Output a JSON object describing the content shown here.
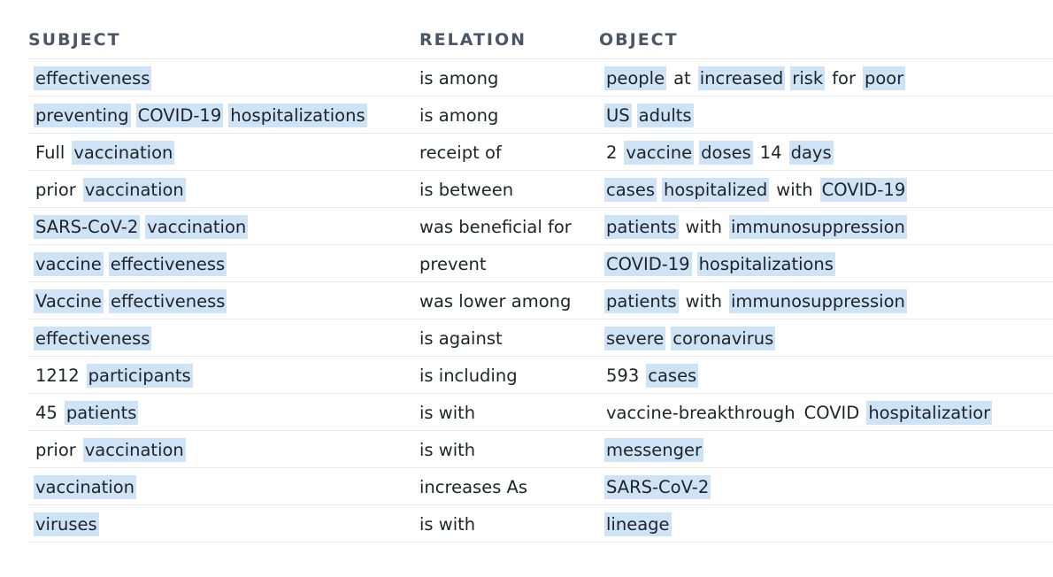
{
  "headers": {
    "subject": "SUBJECT",
    "relation": "RELATION",
    "object": "OBJECT"
  },
  "highlight_color": "#cfe3f7",
  "rows": [
    {
      "subject": [
        {
          "t": "effectiveness",
          "hl": true
        }
      ],
      "relation": "is among",
      "object": [
        {
          "t": "people",
          "hl": true
        },
        {
          "t": "at",
          "hl": false
        },
        {
          "t": "increased",
          "hl": true
        },
        {
          "t": "risk",
          "hl": true
        },
        {
          "t": "for",
          "hl": false
        },
        {
          "t": "poor",
          "hl": true
        }
      ]
    },
    {
      "subject": [
        {
          "t": "preventing",
          "hl": true
        },
        {
          "t": "COVID-19",
          "hl": true
        },
        {
          "t": "hospitalizations",
          "hl": true
        }
      ],
      "relation": "is among",
      "object": [
        {
          "t": "US",
          "hl": true
        },
        {
          "t": "adults",
          "hl": true
        }
      ]
    },
    {
      "subject": [
        {
          "t": "Full",
          "hl": false
        },
        {
          "t": "vaccination",
          "hl": true
        }
      ],
      "relation": "receipt of",
      "object": [
        {
          "t": "2",
          "hl": false
        },
        {
          "t": "vaccine",
          "hl": true
        },
        {
          "t": "doses",
          "hl": true
        },
        {
          "t": "14",
          "hl": false
        },
        {
          "t": "days",
          "hl": true
        }
      ]
    },
    {
      "subject": [
        {
          "t": "prior",
          "hl": false
        },
        {
          "t": "vaccination",
          "hl": true
        }
      ],
      "relation": "is between",
      "object": [
        {
          "t": "cases",
          "hl": true
        },
        {
          "t": "hospitalized",
          "hl": true
        },
        {
          "t": "with",
          "hl": false
        },
        {
          "t": "COVID-19",
          "hl": true
        }
      ]
    },
    {
      "subject": [
        {
          "t": "SARS-CoV-2",
          "hl": true
        },
        {
          "t": "vaccination",
          "hl": true
        }
      ],
      "relation": "was beneficial for",
      "object": [
        {
          "t": "patients",
          "hl": true
        },
        {
          "t": "with",
          "hl": false
        },
        {
          "t": "immunosuppression",
          "hl": true
        }
      ]
    },
    {
      "subject": [
        {
          "t": "vaccine",
          "hl": true
        },
        {
          "t": "effectiveness",
          "hl": true
        }
      ],
      "relation": "prevent",
      "object": [
        {
          "t": "COVID-19",
          "hl": true
        },
        {
          "t": "hospitalizations",
          "hl": true
        }
      ]
    },
    {
      "subject": [
        {
          "t": "Vaccine",
          "hl": true
        },
        {
          "t": "effectiveness",
          "hl": true
        }
      ],
      "relation": "was lower among",
      "object": [
        {
          "t": "patients",
          "hl": true
        },
        {
          "t": "with",
          "hl": false
        },
        {
          "t": "immunosuppression",
          "hl": true
        }
      ]
    },
    {
      "subject": [
        {
          "t": "effectiveness",
          "hl": true
        }
      ],
      "relation": "is against",
      "object": [
        {
          "t": "severe",
          "hl": true
        },
        {
          "t": "coronavirus",
          "hl": true
        }
      ]
    },
    {
      "subject": [
        {
          "t": "1212",
          "hl": false
        },
        {
          "t": "participants",
          "hl": true
        }
      ],
      "relation": "is including",
      "object": [
        {
          "t": "593",
          "hl": false
        },
        {
          "t": "cases",
          "hl": true
        }
      ]
    },
    {
      "subject": [
        {
          "t": "45",
          "hl": false
        },
        {
          "t": "patients",
          "hl": true
        }
      ],
      "relation": "is with",
      "object": [
        {
          "t": "vaccine-breakthrough",
          "hl": false
        },
        {
          "t": "COVID",
          "hl": false
        },
        {
          "t": "hospitalizatior",
          "hl": true
        }
      ]
    },
    {
      "subject": [
        {
          "t": "prior",
          "hl": false
        },
        {
          "t": "vaccination",
          "hl": true
        }
      ],
      "relation": "is with",
      "object": [
        {
          "t": "messenger",
          "hl": true
        }
      ]
    },
    {
      "subject": [
        {
          "t": "vaccination",
          "hl": true
        }
      ],
      "relation": "increases As",
      "object": [
        {
          "t": "SARS-CoV-2",
          "hl": true
        }
      ]
    },
    {
      "subject": [
        {
          "t": "viruses",
          "hl": true
        }
      ],
      "relation": "is with",
      "object": [
        {
          "t": "lineage",
          "hl": true
        }
      ]
    }
  ]
}
